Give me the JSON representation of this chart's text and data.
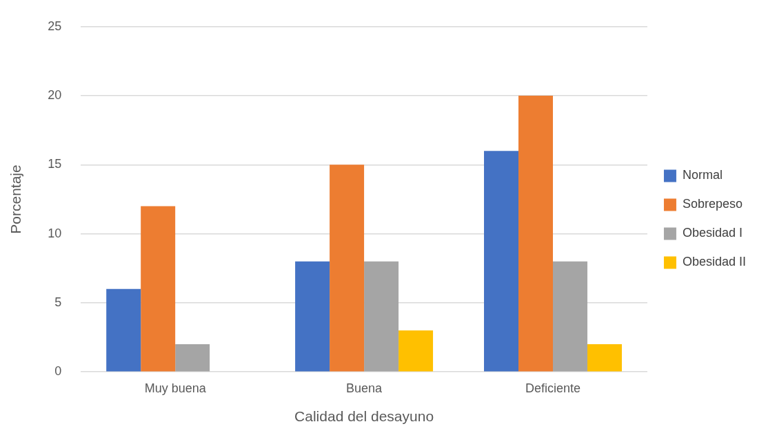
{
  "chart_data": {
    "type": "bar",
    "xlabel": "Calidad del desayuno",
    "ylabel": "Porcentaje",
    "categories": [
      "Muy buena",
      "Buena",
      "Deficiente"
    ],
    "series": [
      {
        "name": "Normal",
        "color": "#4472c4",
        "values": [
          6,
          8,
          16
        ]
      },
      {
        "name": "Sobrepeso",
        "color": "#ed7d31",
        "values": [
          12,
          15,
          20
        ]
      },
      {
        "name": "Obesidad I",
        "color": "#a5a5a5",
        "values": [
          2,
          8,
          8
        ]
      },
      {
        "name": "Obesidad II",
        "color": "#ffc000",
        "values": [
          0,
          3,
          2
        ]
      }
    ],
    "ylim": [
      0,
      25
    ],
    "yticks": [
      0,
      5,
      10,
      15,
      20,
      25
    ],
    "grid": "y",
    "legend": "right"
  }
}
